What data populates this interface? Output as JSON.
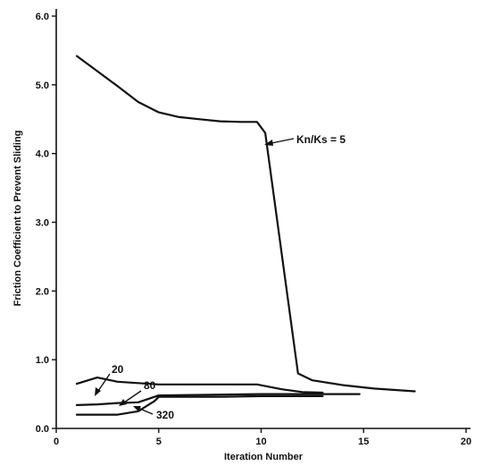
{
  "chart_data": {
    "type": "line",
    "xlabel": "Iteration Number",
    "ylabel": "Friction Coefficient to Prevent Sliding",
    "xlim": [
      0,
      20
    ],
    "ylim": [
      0.0,
      6.0
    ],
    "x_ticks": [
      0,
      5,
      10,
      15,
      20
    ],
    "y_ticks": [
      0.0,
      1.0,
      2.0,
      3.0,
      4.0,
      5.0,
      6.0
    ],
    "x_tick_labels": [
      "0",
      "5",
      "10",
      "15",
      "20"
    ],
    "y_tick_labels": [
      "0.0",
      "1.0",
      "2.0",
      "3.0",
      "4.0",
      "5.0",
      "6.0"
    ],
    "grid": false,
    "series": [
      {
        "name": "Kn/Ks = 5",
        "x": [
          1,
          2,
          3,
          4,
          5,
          6,
          7,
          8,
          9,
          9.8,
          10.2,
          11.8,
          12.5,
          14,
          15.5,
          17.5
        ],
        "y": [
          5.42,
          5.2,
          4.98,
          4.75,
          4.6,
          4.53,
          4.5,
          4.47,
          4.46,
          4.46,
          4.3,
          0.8,
          0.7,
          0.63,
          0.58,
          0.54
        ]
      },
      {
        "name": "20",
        "x": [
          1,
          2,
          3,
          5,
          7,
          9.8,
          11,
          12,
          13
        ],
        "y": [
          0.65,
          0.74,
          0.68,
          0.64,
          0.64,
          0.64,
          0.57,
          0.53,
          0.52
        ]
      },
      {
        "name": "80",
        "x": [
          1,
          2,
          3,
          4,
          5,
          10,
          11,
          12,
          13,
          14.8
        ],
        "y": [
          0.34,
          0.35,
          0.37,
          0.38,
          0.48,
          0.5,
          0.5,
          0.5,
          0.5,
          0.5
        ]
      },
      {
        "name": "320",
        "x": [
          1,
          2,
          3,
          4,
          4.8,
          5,
          6,
          8,
          10,
          12,
          13
        ],
        "y": [
          0.2,
          0.2,
          0.2,
          0.25,
          0.4,
          0.46,
          0.46,
          0.46,
          0.47,
          0.47,
          0.47
        ]
      }
    ],
    "annotations": [
      {
        "text": "Kn/Ks = 5",
        "series": 0
      },
      {
        "text": "20",
        "series": 1
      },
      {
        "text": "80",
        "series": 2
      },
      {
        "text": "320",
        "series": 3
      }
    ]
  }
}
